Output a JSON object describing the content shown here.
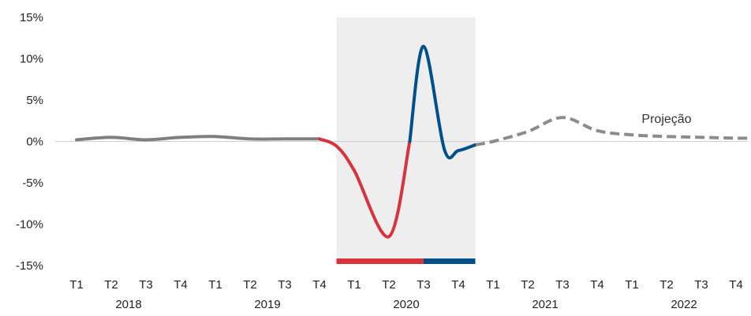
{
  "chart_data": {
    "type": "line",
    "title": "",
    "xlabel": "",
    "ylabel": "",
    "ylim": [
      -15,
      15
    ],
    "y_ticks": [
      {
        "value": 15,
        "label": "15%"
      },
      {
        "value": 10,
        "label": "10%"
      },
      {
        "value": 5,
        "label": "5%"
      },
      {
        "value": 0,
        "label": "0%"
      },
      {
        "value": -5,
        "label": "-5%"
      },
      {
        "value": -10,
        "label": "-10%"
      },
      {
        "value": -15,
        "label": "-15%"
      }
    ],
    "quarters": [
      "T1",
      "T2",
      "T3",
      "T4",
      "T1",
      "T2",
      "T3",
      "T4",
      "T1",
      "T2",
      "T3",
      "T4",
      "T1",
      "T2",
      "T3",
      "T4",
      "T1",
      "T2",
      "T3",
      "T4"
    ],
    "years": [
      "2018",
      "2019",
      "2020",
      "2021",
      "2022"
    ],
    "grid": false,
    "zero_line": true,
    "shaded_period": {
      "year": "2020",
      "color": "#eeeeee"
    },
    "series": [
      {
        "style": "solid",
        "color": "#7f7f7f",
        "points": [
          [
            0,
            0.2
          ],
          [
            1,
            0.5
          ],
          [
            2,
            0.2
          ],
          [
            3,
            0.5
          ],
          [
            4,
            0.6
          ],
          [
            5,
            0.3
          ],
          [
            6,
            0.3
          ],
          [
            7,
            0.3
          ]
        ]
      },
      {
        "style": "solid",
        "color": "#d7333d",
        "points": [
          [
            7,
            0.3
          ],
          [
            7.5,
            -0.6
          ],
          [
            8,
            -3.5
          ],
          [
            9,
            -11.5
          ],
          [
            9.6,
            0
          ]
        ]
      },
      {
        "style": "solid",
        "color": "#00508c",
        "points": [
          [
            9.6,
            0
          ],
          [
            10,
            11.5
          ],
          [
            10.6,
            -1
          ],
          [
            11,
            -1.1
          ],
          [
            11.5,
            -0.4
          ]
        ]
      },
      {
        "style": "dashed",
        "color": "#8c8c8c",
        "points": [
          [
            11.5,
            -0.4
          ],
          [
            12,
            0
          ],
          [
            13,
            1.2
          ],
          [
            14,
            2.9
          ],
          [
            15,
            1.3
          ],
          [
            16,
            0.8
          ],
          [
            17,
            0.6
          ],
          [
            18,
            0.5
          ],
          [
            19,
            0.4
          ],
          [
            20,
            0.4
          ]
        ]
      }
    ],
    "period_bar": [
      {
        "from": 8,
        "to": 10,
        "color": "#d7333d"
      },
      {
        "from": 10,
        "to": 12,
        "color": "#00508c"
      }
    ],
    "annotations": [
      {
        "text": "Projeção",
        "x": 17,
        "y": 2.8
      }
    ]
  }
}
